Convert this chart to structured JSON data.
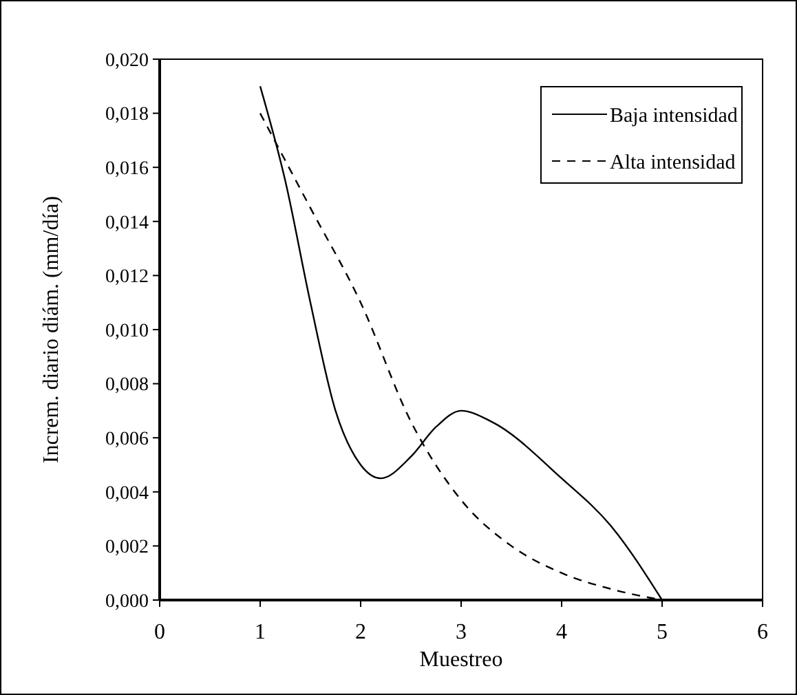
{
  "chart_data": {
    "type": "line",
    "xlabel": "Muestreo",
    "ylabel": "Increm. diario diám. (mm/día)",
    "xlim": [
      0,
      6
    ],
    "xticks": [
      0,
      1,
      2,
      3,
      4,
      5,
      6
    ],
    "ylim": [
      0,
      0.02
    ],
    "yticks": [
      {
        "value": 0,
        "label": "0,000"
      },
      {
        "value": 0.002,
        "label": "0,002"
      },
      {
        "value": 0.004,
        "label": "0,004"
      },
      {
        "value": 0.006,
        "label": "0,006"
      },
      {
        "value": 0.008,
        "label": "0,008"
      },
      {
        "value": 0.01,
        "label": "0,010"
      },
      {
        "value": 0.012,
        "label": "0,012"
      },
      {
        "value": 0.014,
        "label": "0,014"
      },
      {
        "value": 0.016,
        "label": "0,016"
      },
      {
        "value": 0.018,
        "label": "0,018"
      },
      {
        "value": 0.02,
        "label": "0,020"
      }
    ],
    "legend": "top right",
    "grid": false,
    "series": [
      {
        "name": "Baja intensidad",
        "color": "#000000",
        "line_style": "solid",
        "x": [
          1,
          1.25,
          1.5,
          1.75,
          2,
          2.2,
          2.5,
          2.75,
          3,
          3.3,
          4,
          4.5,
          5
        ],
        "values": [
          0.019,
          0.0155,
          0.011,
          0.007,
          0.005,
          0.0045,
          0.0053,
          0.0064,
          0.007,
          0.0066,
          0.0045,
          0.0027,
          0
        ]
      },
      {
        "name": "Alta intensidad",
        "color": "#000000",
        "line_style": "dashed",
        "x": [
          1,
          1.5,
          2,
          2.5,
          3,
          3.5,
          4,
          4.5,
          5
        ],
        "values": [
          0.018,
          0.0145,
          0.011,
          0.0066,
          0.0037,
          0.002,
          0.001,
          0.0004,
          0
        ]
      }
    ]
  }
}
